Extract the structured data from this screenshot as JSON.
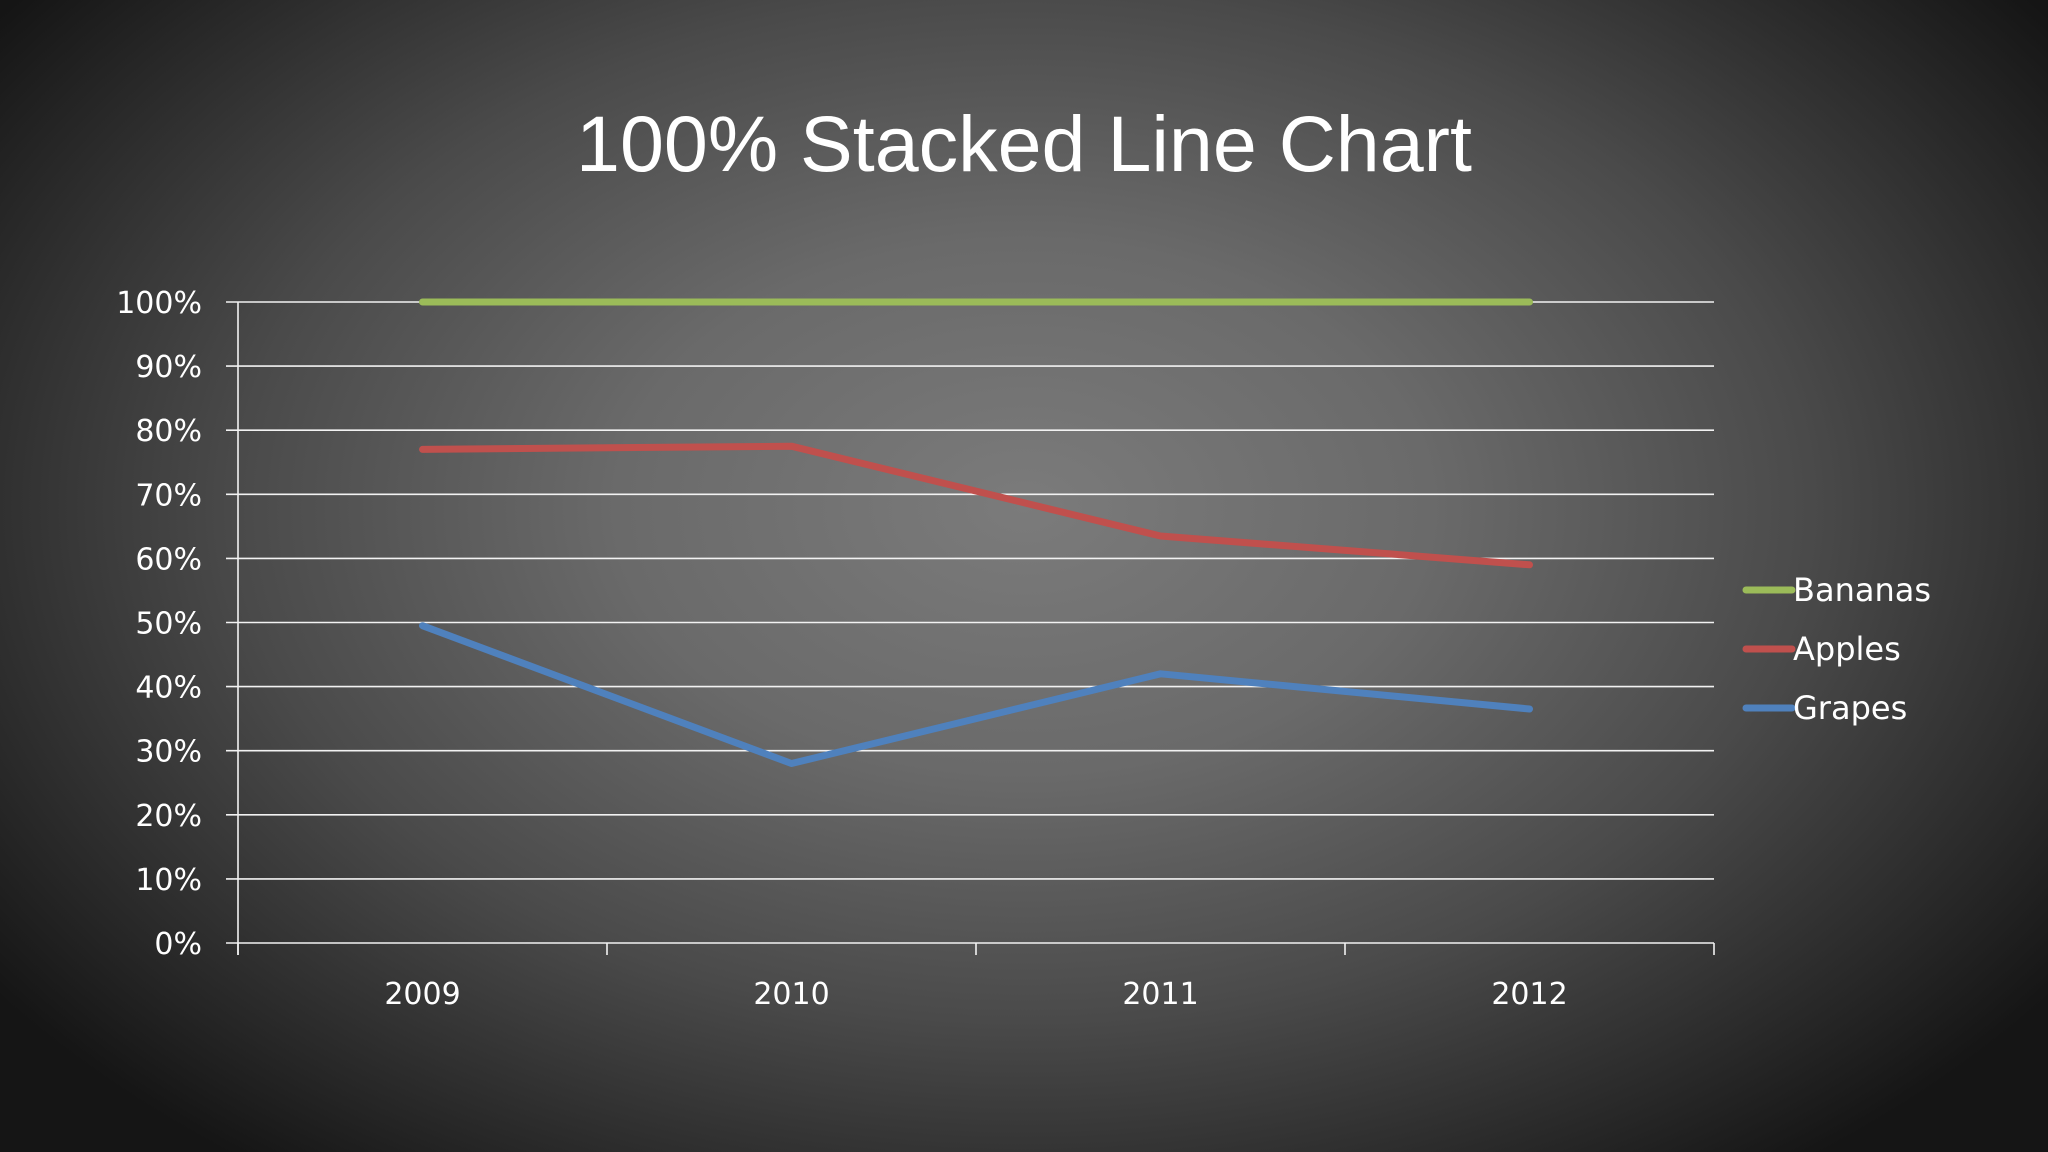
{
  "slide": {
    "title": "100% Stacked Line Chart"
  },
  "chart_data": {
    "type": "line",
    "subtype": "100% stacked",
    "title": "100% Stacked Line Chart",
    "categories": [
      "2009",
      "2010",
      "2011",
      "2012"
    ],
    "series": [
      {
        "name": "Bananas",
        "color": "#9bbb59",
        "values": [
          100,
          100,
          100,
          100
        ]
      },
      {
        "name": "Apples",
        "color": "#c0504d",
        "values": [
          77,
          77.5,
          63.5,
          59
        ]
      },
      {
        "name": "Grapes",
        "color": "#4f81bd",
        "values": [
          49.5,
          28,
          42,
          36.5
        ]
      }
    ],
    "ylim": [
      0,
      100
    ],
    "y_ticks": [
      "0%",
      "10%",
      "20%",
      "30%",
      "40%",
      "50%",
      "60%",
      "70%",
      "80%",
      "90%",
      "100%"
    ],
    "grid": true,
    "legend_position": "right",
    "xlabel": "",
    "ylabel": ""
  }
}
